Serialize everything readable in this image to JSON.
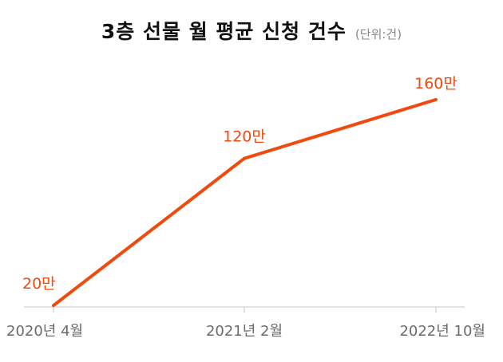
{
  "chart_data": {
    "type": "line",
    "title": "3층 선물 월 평균 신청 건수",
    "unit_note": "(단위:건)",
    "categories": [
      "2020년 4월",
      "2021년 2월",
      "2022년 10월"
    ],
    "series": [
      {
        "values": [
          200000,
          1200000,
          1600000
        ]
      }
    ],
    "data_labels": [
      "20만",
      "120만",
      "160만"
    ],
    "ylim": [
      0,
      1800000
    ],
    "grid": false,
    "line_color": "#f04a0e",
    "axis_color": "#d9d9d9",
    "tick_label_color": "#6b6b6b"
  }
}
